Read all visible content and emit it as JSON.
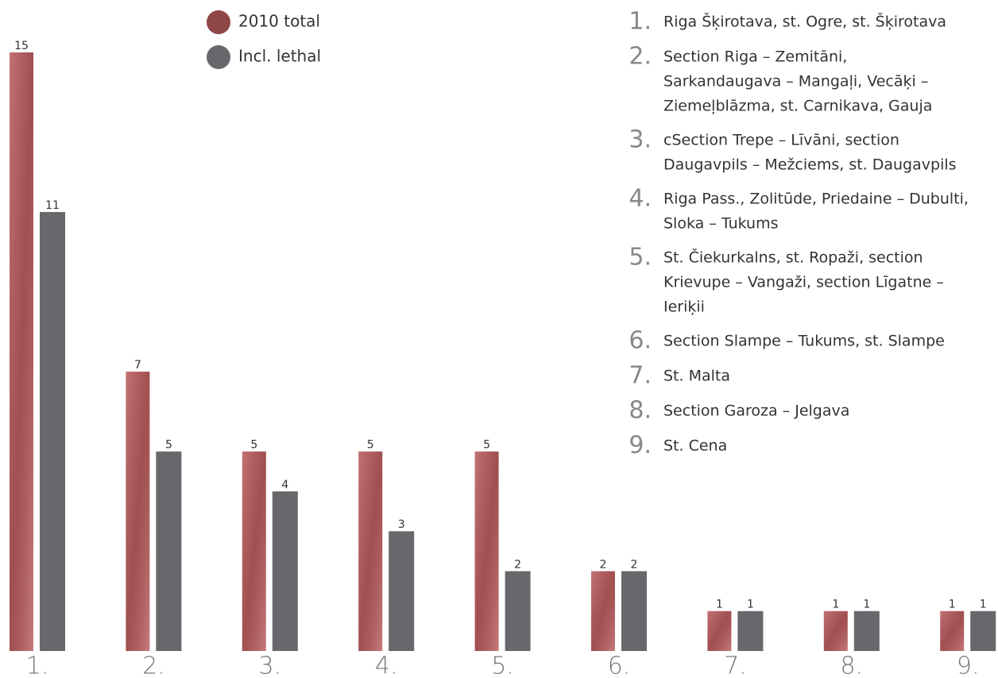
{
  "chart_data": {
    "type": "bar",
    "categories": [
      "1.",
      "2.",
      "3.",
      "4.",
      "5.",
      "6.",
      "7.",
      "8.",
      "9."
    ],
    "series": [
      {
        "name": "2010 total",
        "color": "#b85a5c",
        "values": [
          15,
          7,
          5,
          5,
          5,
          2,
          1,
          1,
          1
        ]
      },
      {
        "name": "Incl. lethal",
        "color": "#68686c",
        "values": [
          11,
          5,
          4,
          3,
          2,
          2,
          1,
          1,
          1
        ]
      }
    ],
    "ylim": [
      0,
      15
    ],
    "notes": [
      {
        "label": "1.",
        "lines": [
          "Riga Šķirotava, st. Ogre, st. Šķirotava"
        ]
      },
      {
        "label": "2.",
        "lines": [
          "Section Riga – Zemitāni,",
          "Sarkandaugava – Mangaļi, Vecāķi –",
          "Ziemeļblāzma, st. Carnikava, Gauja"
        ]
      },
      {
        "label": "3.",
        "lines": [
          "cSection Trepe – Līvāni, section",
          "Daugavpils – Mežciems, st. Daugavpils"
        ]
      },
      {
        "label": "4.",
        "lines": [
          "Riga Pass., Zolitūde, Priedaine – Dubulti,",
          "Sloka – Tukums"
        ]
      },
      {
        "label": "5.",
        "lines": [
          "St. Čiekurkalns, st. Ropaži, section",
          "Krievupe – Vangaži, section Līgatne –",
          "Ieriķii"
        ]
      },
      {
        "label": "6.",
        "lines": [
          "Section Slampe – Tukums, st. Slampe"
        ]
      },
      {
        "label": "7.",
        "lines": [
          "St. Malta"
        ]
      },
      {
        "label": "8.",
        "lines": [
          "Section Garoza – Jelgava"
        ]
      },
      {
        "label": "9.",
        "lines": [
          "St. Cena"
        ]
      }
    ]
  }
}
